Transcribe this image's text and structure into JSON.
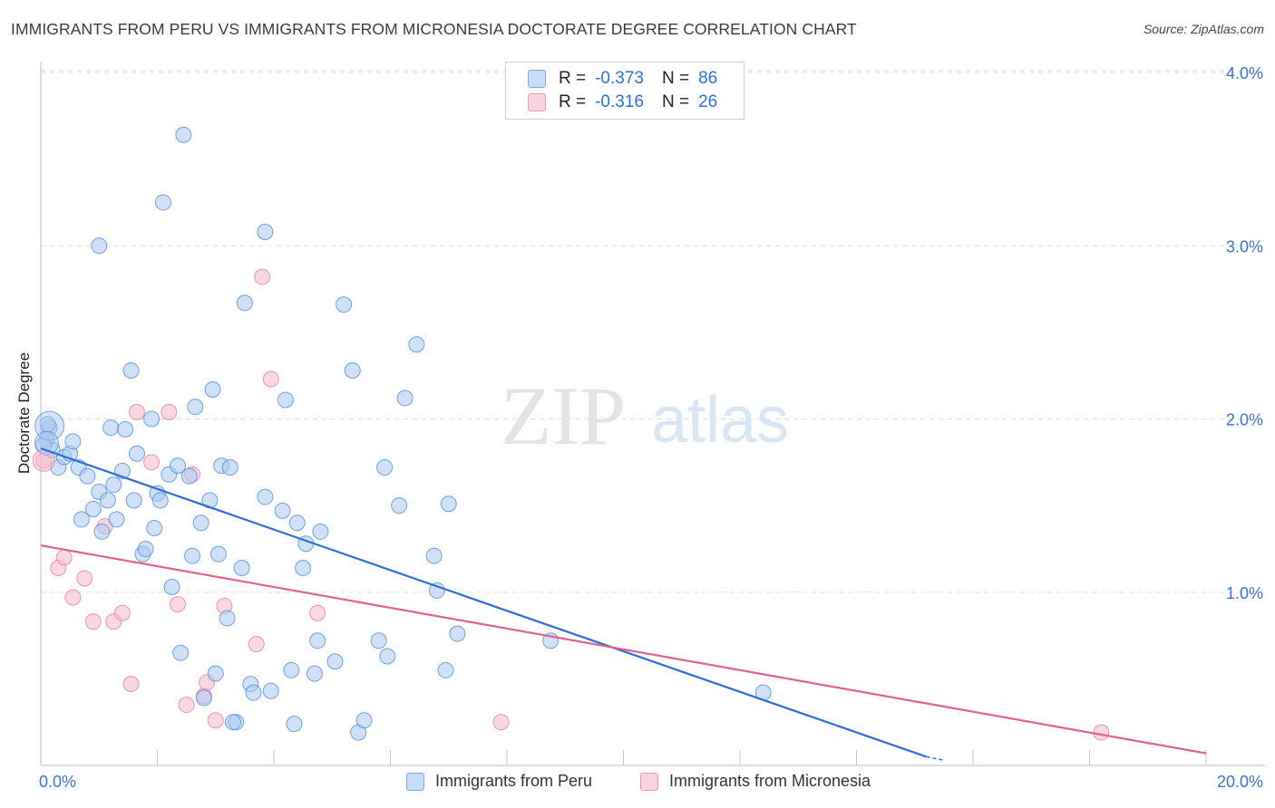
{
  "title": "IMMIGRANTS FROM PERU VS IMMIGRANTS FROM MICRONESIA DOCTORATE DEGREE CORRELATION CHART",
  "source": "Source: ZipAtlas.com",
  "watermark": {
    "zip": "ZIP",
    "atlas": "atlas"
  },
  "legend_top": {
    "rows": [
      {
        "r_label": "R =",
        "r_value": "-0.373",
        "n_label": "N =",
        "n_value": "86",
        "color": "#a9c8f0"
      },
      {
        "r_label": "R =",
        "r_value": "-0.316",
        "n_label": "N =",
        "n_value": "26",
        "color": "#f5b8cb"
      }
    ]
  },
  "legend_bottom": [
    {
      "label": "Immigrants from Peru",
      "color": "#a9c8f0"
    },
    {
      "label": "Immigrants from Micronesia",
      "color": "#f5b8cb"
    }
  ],
  "chart_data": {
    "type": "scatter",
    "title": "IMMIGRANTS FROM PERU VS IMMIGRANTS FROM MICRONESIA DOCTORATE DEGREE CORRELATION CHART",
    "xlabel": "",
    "ylabel": "Doctorate Degree",
    "xlim": [
      0,
      20
    ],
    "ylim": [
      0,
      4.0
    ],
    "x_tick_labels": [
      "0.0%",
      "20.0%"
    ],
    "y_ticks": [
      1.0,
      2.0,
      3.0,
      4.0
    ],
    "y_tick_labels": [
      "1.0%",
      "2.0%",
      "3.0%",
      "4.0%"
    ],
    "grid": true,
    "series": [
      {
        "name": "Immigrants from Peru",
        "color": "#4a86d8",
        "fill": "#a9c8f0",
        "points": [
          [
            0.1,
            1.88
          ],
          [
            0.15,
            1.95
          ],
          [
            0.2,
            1.82
          ],
          [
            0.3,
            1.72
          ],
          [
            0.4,
            1.78
          ],
          [
            0.5,
            1.8
          ],
          [
            0.55,
            1.87
          ],
          [
            0.65,
            1.72
          ],
          [
            0.8,
            1.67
          ],
          [
            0.9,
            1.48
          ],
          [
            0.7,
            1.42
          ],
          [
            1.0,
            1.58
          ],
          [
            1.05,
            1.35
          ],
          [
            1.15,
            1.53
          ],
          [
            1.2,
            1.95
          ],
          [
            1.25,
            1.62
          ],
          [
            1.3,
            1.42
          ],
          [
            1.4,
            1.7
          ],
          [
            1.45,
            1.94
          ],
          [
            1.55,
            2.28
          ],
          [
            1.6,
            1.53
          ],
          [
            1.65,
            1.8
          ],
          [
            1.75,
            1.22
          ],
          [
            1.8,
            1.25
          ],
          [
            1.9,
            2.0
          ],
          [
            1.95,
            1.37
          ],
          [
            2.0,
            1.57
          ],
          [
            2.05,
            1.53
          ],
          [
            2.1,
            3.25
          ],
          [
            2.2,
            1.68
          ],
          [
            2.25,
            1.03
          ],
          [
            2.35,
            1.73
          ],
          [
            2.4,
            0.65
          ],
          [
            2.45,
            3.64
          ],
          [
            2.55,
            1.67
          ],
          [
            2.6,
            1.21
          ],
          [
            2.65,
            2.07
          ],
          [
            2.75,
            1.4
          ],
          [
            2.8,
            0.39
          ],
          [
            2.9,
            1.53
          ],
          [
            2.95,
            2.17
          ],
          [
            3.0,
            0.53
          ],
          [
            3.05,
            1.22
          ],
          [
            3.1,
            1.73
          ],
          [
            3.2,
            0.85
          ],
          [
            3.25,
            1.72
          ],
          [
            3.35,
            0.25
          ],
          [
            3.45,
            1.14
          ],
          [
            3.5,
            2.67
          ],
          [
            3.6,
            0.47
          ],
          [
            3.65,
            0.42
          ],
          [
            3.85,
            1.55
          ],
          [
            3.85,
            3.08
          ],
          [
            3.95,
            0.43
          ],
          [
            4.15,
            1.47
          ],
          [
            4.2,
            2.11
          ],
          [
            4.3,
            0.55
          ],
          [
            4.35,
            0.24
          ],
          [
            4.4,
            1.4
          ],
          [
            4.5,
            1.14
          ],
          [
            4.55,
            1.28
          ],
          [
            4.7,
            0.53
          ],
          [
            4.75,
            0.72
          ],
          [
            4.8,
            1.35
          ],
          [
            5.05,
            0.6
          ],
          [
            5.2,
            2.66
          ],
          [
            5.35,
            2.28
          ],
          [
            5.45,
            0.19
          ],
          [
            5.55,
            0.26
          ],
          [
            5.8,
            0.72
          ],
          [
            5.9,
            1.72
          ],
          [
            5.95,
            0.63
          ],
          [
            6.15,
            1.5
          ],
          [
            6.25,
            2.12
          ],
          [
            6.45,
            2.43
          ],
          [
            6.75,
            1.21
          ],
          [
            6.8,
            1.01
          ],
          [
            6.95,
            0.55
          ],
          [
            7.0,
            1.51
          ],
          [
            7.15,
            0.76
          ],
          [
            8.75,
            0.72
          ],
          [
            12.4,
            0.42
          ],
          [
            0.05,
            1.85
          ],
          [
            0.12,
            1.97
          ],
          [
            3.3,
            0.25
          ],
          [
            1.0,
            3.0
          ]
        ],
        "trendline": {
          "x": [
            0.0,
            15.2
          ],
          "y": [
            1.83,
            0.05
          ],
          "dashed_extension_to": [
            15.5,
            0.03
          ]
        }
      },
      {
        "name": "Immigrants from Micronesia",
        "color": "#e8779d",
        "fill": "#f5b8cb",
        "points": [
          [
            0.05,
            1.76
          ],
          [
            0.3,
            1.14
          ],
          [
            0.4,
            1.2
          ],
          [
            0.55,
            0.97
          ],
          [
            0.75,
            1.08
          ],
          [
            0.9,
            0.83
          ],
          [
            1.1,
            1.38
          ],
          [
            1.25,
            0.83
          ],
          [
            1.4,
            0.88
          ],
          [
            1.55,
            0.47
          ],
          [
            1.65,
            2.04
          ],
          [
            1.9,
            1.75
          ],
          [
            2.2,
            2.04
          ],
          [
            2.35,
            0.93
          ],
          [
            2.5,
            0.35
          ],
          [
            2.6,
            1.68
          ],
          [
            2.8,
            0.4
          ],
          [
            2.85,
            0.48
          ],
          [
            3.0,
            0.26
          ],
          [
            3.15,
            0.92
          ],
          [
            3.7,
            0.7
          ],
          [
            3.8,
            2.82
          ],
          [
            3.95,
            2.23
          ],
          [
            4.75,
            0.88
          ],
          [
            7.9,
            0.25
          ],
          [
            18.2,
            0.19
          ]
        ],
        "trendline": {
          "x": [
            0.0,
            20.0
          ],
          "y": [
            1.27,
            0.07
          ]
        }
      }
    ]
  }
}
